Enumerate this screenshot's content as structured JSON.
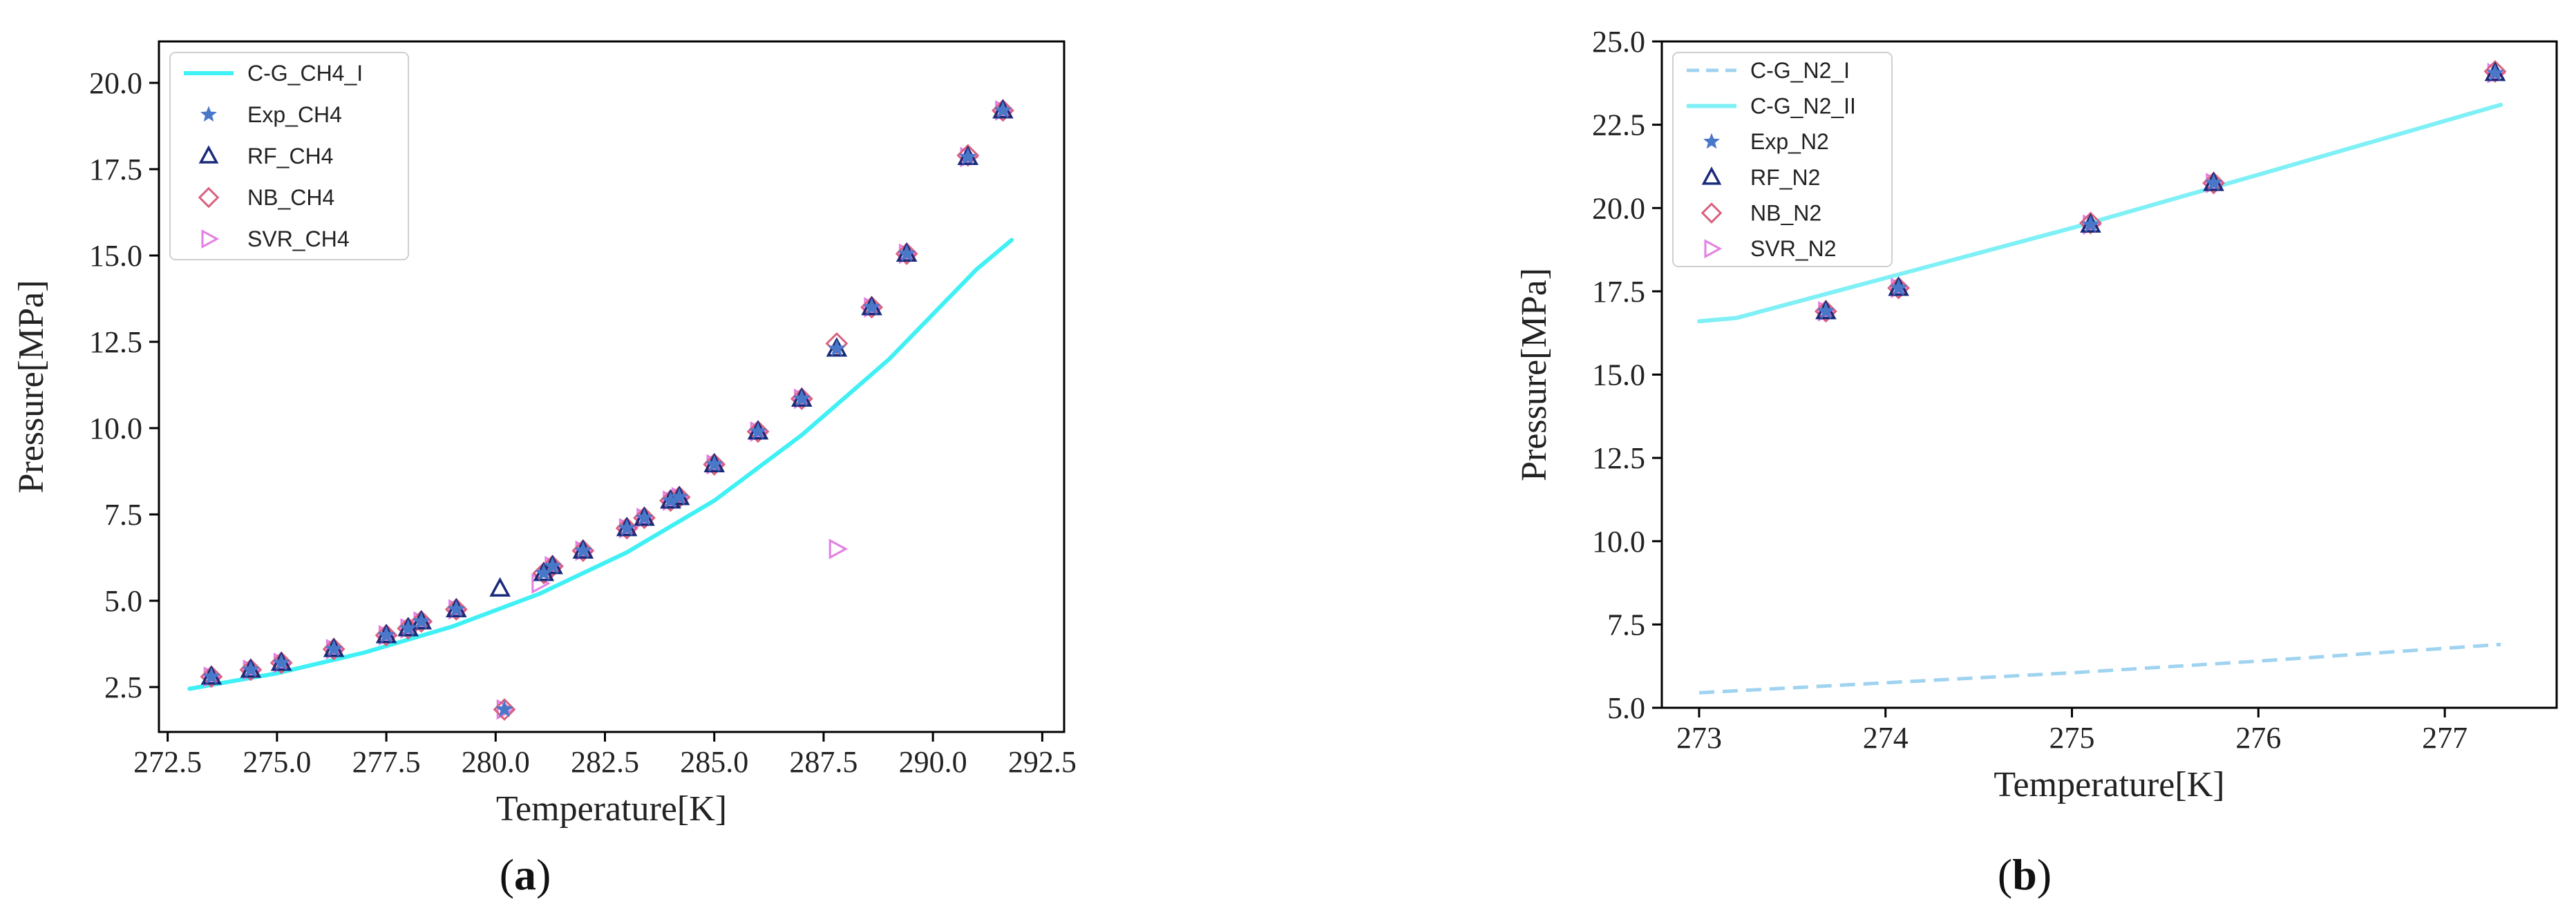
{
  "chart_data": [
    {
      "type": "scatter",
      "caption_letter": "a",
      "xlabel": "Temperature[K]",
      "ylabel": "Pressure[MPa]",
      "xlim": [
        272.3,
        293.0
      ],
      "ylim": [
        1.2,
        21.2
      ],
      "xticks": [
        "272.5",
        "275.0",
        "277.5",
        "280.0",
        "282.5",
        "285.0",
        "287.5",
        "290.0",
        "292.5"
      ],
      "xtick_values": [
        272.5,
        275.0,
        277.5,
        280.0,
        282.5,
        285.0,
        287.5,
        290.0,
        292.5
      ],
      "yticks": [
        "2.5",
        "5.0",
        "7.5",
        "10.0",
        "12.5",
        "15.0",
        "17.5",
        "20.0"
      ],
      "ytick_values": [
        2.5,
        5.0,
        7.5,
        10.0,
        12.5,
        15.0,
        17.5,
        20.0
      ],
      "legend_position": "top-left",
      "series": [
        {
          "name": "C-G_CH4_I",
          "kind": "line",
          "style": "solid",
          "color": "#3ff0f5",
          "x": [
            273.0,
            275.0,
            277.0,
            279.0,
            281.0,
            283.0,
            285.0,
            287.0,
            289.0,
            291.0,
            291.8
          ],
          "y": [
            2.45,
            2.9,
            3.5,
            4.25,
            5.2,
            6.4,
            7.9,
            9.8,
            12.0,
            14.6,
            15.45
          ]
        },
        {
          "name": "Exp_CH4",
          "kind": "marker",
          "marker": "star",
          "color": "#4a78c9",
          "x": [
            273.5,
            274.4,
            275.1,
            276.3,
            277.5,
            278.0,
            278.3,
            279.1,
            280.2,
            281.1,
            281.3,
            282.0,
            283.0,
            283.4,
            284.0,
            284.2,
            285.0,
            286.0,
            287.0,
            287.8,
            288.6,
            289.4,
            290.8,
            291.6
          ],
          "y": [
            2.8,
            3.0,
            3.2,
            3.6,
            4.0,
            4.2,
            4.4,
            4.75,
            1.85,
            5.8,
            6.0,
            6.45,
            7.1,
            7.4,
            7.9,
            8.0,
            8.95,
            9.9,
            10.85,
            12.3,
            13.5,
            15.05,
            17.85,
            19.2
          ]
        },
        {
          "name": "RF_CH4",
          "kind": "marker",
          "marker": "triangle-up",
          "color": "#1a2a7a",
          "x": [
            273.5,
            274.4,
            275.1,
            276.3,
            277.5,
            278.0,
            278.3,
            279.1,
            280.1,
            281.1,
            281.3,
            282.0,
            283.0,
            283.4,
            284.0,
            284.2,
            285.0,
            286.0,
            287.0,
            287.8,
            288.6,
            289.4,
            290.8,
            291.6
          ],
          "y": [
            2.8,
            3.0,
            3.2,
            3.6,
            4.0,
            4.2,
            4.4,
            4.75,
            5.35,
            5.8,
            6.0,
            6.45,
            7.1,
            7.4,
            7.9,
            8.0,
            8.95,
            9.9,
            10.85,
            12.3,
            13.5,
            15.05,
            17.85,
            19.2
          ]
        },
        {
          "name": "NB_CH4",
          "kind": "marker",
          "marker": "diamond",
          "color": "#d9607e",
          "x": [
            273.5,
            274.4,
            275.1,
            276.3,
            277.5,
            278.0,
            278.3,
            279.1,
            280.2,
            281.1,
            281.3,
            282.0,
            283.0,
            283.4,
            284.0,
            284.2,
            285.0,
            286.0,
            287.0,
            287.8,
            288.6,
            289.4,
            290.8,
            291.6
          ],
          "y": [
            2.8,
            3.0,
            3.2,
            3.6,
            4.0,
            4.2,
            4.4,
            4.75,
            1.85,
            5.8,
            6.0,
            6.45,
            7.1,
            7.4,
            7.9,
            8.0,
            8.95,
            9.9,
            10.85,
            12.45,
            13.5,
            15.05,
            17.9,
            19.2
          ]
        },
        {
          "name": "SVR_CH4",
          "kind": "marker",
          "marker": "triangle-right",
          "color": "#e37fe3",
          "x": [
            273.5,
            274.4,
            275.1,
            276.3,
            277.5,
            278.0,
            278.3,
            279.1,
            280.2,
            281.0,
            281.3,
            282.0,
            283.0,
            283.4,
            284.0,
            284.2,
            285.0,
            286.0,
            287.0,
            287.8,
            288.6,
            289.4,
            290.8,
            291.6
          ],
          "y": [
            2.8,
            3.0,
            3.2,
            3.6,
            4.0,
            4.2,
            4.4,
            4.75,
            1.85,
            5.5,
            6.0,
            6.45,
            7.1,
            7.4,
            7.9,
            8.0,
            8.95,
            9.9,
            10.85,
            6.5,
            13.5,
            15.05,
            17.85,
            19.2
          ]
        }
      ]
    },
    {
      "type": "scatter",
      "caption_letter": "b",
      "xlabel": "Temperature[K]",
      "ylabel": "Pressure[MPa]",
      "xlim": [
        272.8,
        277.6
      ],
      "ylim": [
        5.0,
        25.0
      ],
      "xticks": [
        "273",
        "274",
        "275",
        "276",
        "277"
      ],
      "xtick_values": [
        273,
        274,
        275,
        276,
        277
      ],
      "yticks": [
        "5.0",
        "7.5",
        "10.0",
        "12.5",
        "15.0",
        "17.5",
        "20.0",
        "22.5",
        "25.0"
      ],
      "ytick_values": [
        5.0,
        7.5,
        10.0,
        12.5,
        15.0,
        17.5,
        20.0,
        22.5,
        25.0
      ],
      "legend_position": "top-left",
      "series": [
        {
          "name": "C-G_N2_I",
          "kind": "line",
          "style": "dashed",
          "color": "#9fd3f0",
          "x": [
            273.0,
            274.0,
            275.0,
            276.0,
            277.3
          ],
          "y": [
            5.45,
            5.75,
            6.05,
            6.4,
            6.9
          ]
        },
        {
          "name": "C-G_N2_II",
          "kind": "line",
          "style": "solid",
          "color": "#7ff0f5",
          "x": [
            273.0,
            273.2,
            274.0,
            275.0,
            276.0,
            277.3
          ],
          "y": [
            16.6,
            16.7,
            17.9,
            19.4,
            21.0,
            23.1
          ]
        },
        {
          "name": "Exp_N2",
          "kind": "marker",
          "marker": "star",
          "color": "#4a78c9",
          "x": [
            273.68,
            274.07,
            275.1,
            275.76,
            277.27
          ],
          "y": [
            16.9,
            17.6,
            19.5,
            20.75,
            24.05
          ]
        },
        {
          "name": "RF_N2",
          "kind": "marker",
          "marker": "triangle-up",
          "color": "#1a2a7a",
          "x": [
            273.68,
            274.07,
            275.1,
            275.76,
            277.27
          ],
          "y": [
            16.9,
            17.6,
            19.5,
            20.75,
            24.05
          ]
        },
        {
          "name": "NB_N2",
          "kind": "marker",
          "marker": "diamond",
          "color": "#d9607e",
          "x": [
            273.68,
            274.07,
            275.1,
            275.76,
            277.27
          ],
          "y": [
            16.9,
            17.6,
            19.55,
            20.75,
            24.1
          ]
        },
        {
          "name": "SVR_N2",
          "kind": "marker",
          "marker": "triangle-right",
          "color": "#e37fe3",
          "x": [
            273.68,
            274.07,
            275.1,
            275.76,
            277.27
          ],
          "y": [
            16.9,
            17.6,
            19.5,
            20.75,
            24.05
          ]
        }
      ]
    }
  ]
}
